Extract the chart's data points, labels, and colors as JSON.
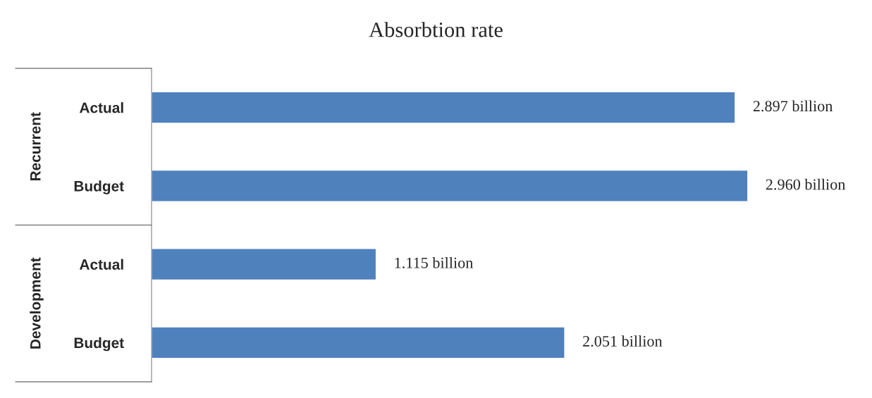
{
  "chart_data": {
    "type": "bar",
    "orientation": "horizontal",
    "title": "Absorbtion rate",
    "categories": [
      "Actual",
      "Budget",
      "Actual",
      "Budget"
    ],
    "values": [
      2.897,
      2.96,
      1.115,
      2.051
    ],
    "value_labels": [
      "2.897 billion",
      "2.960 billion",
      "1.115 billion",
      "2.051 billion"
    ],
    "color": "#4f81bd",
    "annotations": [
      "Recurrent",
      "Development"
    ],
    "grid": false,
    "legend": false
  }
}
